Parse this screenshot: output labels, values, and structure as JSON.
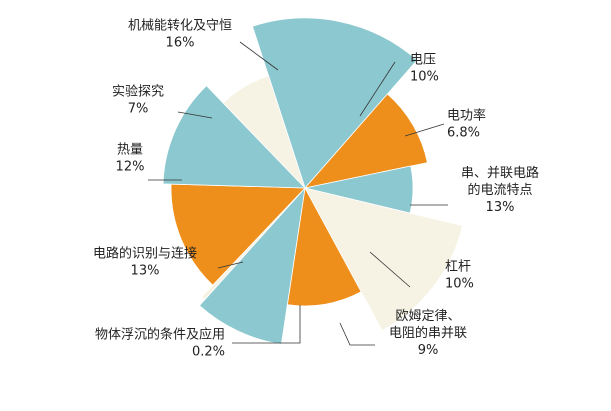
{
  "chart_data": {
    "type": "pie",
    "style": "exploded-radius",
    "slices": [
      {
        "name": "机械能转化及守恒",
        "value": 16,
        "value_label": "16%",
        "color": "#8cc8cf"
      },
      {
        "name": "电压",
        "value": 10,
        "value_label": "10%",
        "color": "#ee8f1b"
      },
      {
        "name": "电功率",
        "value": 6.8,
        "value_label": "6.8%",
        "color": "#8cc8cf"
      },
      {
        "name": "串、并联电路的电流特点",
        "value": 13,
        "value_label": "13%",
        "color": "#f6f2e4"
      },
      {
        "name": "杠杆",
        "value": 10,
        "value_label": "10%",
        "color": "#ee8f1b"
      },
      {
        "name": "欧姆定律、电阻的串并联",
        "value": 9,
        "value_label": "9%",
        "color": "#8cc8cf"
      },
      {
        "name": "物体浮沉的条件及应用",
        "value": 0.2,
        "value_label": "0.2%",
        "color": "#f6f2e4"
      },
      {
        "name": "电路的识别与连接",
        "value": 13,
        "value_label": "13%",
        "color": "#ee8f1b"
      },
      {
        "name": "热量",
        "value": 12,
        "value_label": "12%",
        "color": "#8cc8cf"
      },
      {
        "name": "实验探究",
        "value": 7,
        "value_label": "7%",
        "color": "#f6f2e4"
      }
    ]
  },
  "label_lines": [
    [
      "机械能转化及守恒",
      "16%"
    ],
    [
      "电压",
      "10%"
    ],
    [
      "电功率",
      "6.8%"
    ],
    [
      "串、并联电路",
      "的电流特点",
      "13%"
    ],
    [
      "杠杆",
      "10%"
    ],
    [
      "欧姆定律、",
      "电阻的串并联",
      "9%"
    ],
    [
      "物体浮沉的条件及应用",
      "0.2%"
    ],
    [
      "电路的识别与连接",
      "13%"
    ],
    [
      "热量",
      "12%"
    ],
    [
      "实验探究",
      "7%"
    ]
  ]
}
